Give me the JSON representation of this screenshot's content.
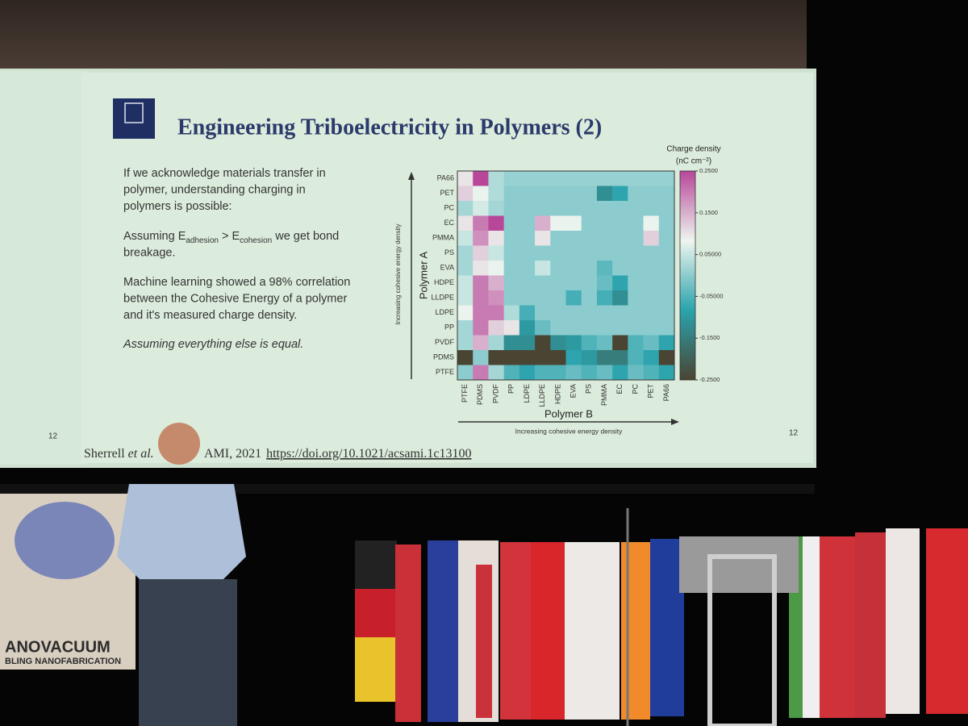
{
  "slide": {
    "title": "Engineering Triboelectricity in Polymers (2)",
    "page_number": "12",
    "paragraphs": [
      {
        "style": "normal",
        "lines": [
          [
            {
              "text": "If we acknowledge materials transfer in"
            }
          ],
          [
            {
              "text": "polymer, understanding charging in"
            }
          ],
          [
            {
              "text": "polymers is possible:"
            }
          ]
        ]
      },
      {
        "style": "normal",
        "lines": [
          [
            {
              "text": "Assuming E"
            },
            {
              "text": "adhesion",
              "sub": true
            },
            {
              "text": " > E"
            },
            {
              "text": "cohesion",
              "sub": true
            },
            {
              "text": " we get bond"
            }
          ],
          [
            {
              "text": "breakage."
            }
          ]
        ]
      },
      {
        "style": "normal",
        "lines": [
          [
            {
              "text": "Machine learning showed a 98% correlation"
            }
          ],
          [
            {
              "text": "between the Cohesive Energy of a polymer"
            }
          ],
          [
            {
              "text": "and it's measured charge density."
            }
          ]
        ]
      },
      {
        "style": "italic",
        "lines": [
          [
            {
              "text": "Assuming everything else is equal."
            }
          ]
        ]
      }
    ],
    "citation": {
      "author": "Sherrell",
      "etal": "et al.",
      "journal": "AMI, 2021",
      "link": "https://doi.org/10.1021/acsami.1c13100"
    }
  },
  "prev_slide": {
    "page_number": "12"
  },
  "banner": {
    "lines": [
      "ANOVACUUM",
      "BLING NANOFABRICATION"
    ]
  },
  "chart_data": {
    "type": "heatmap",
    "y_label": "Polymer A",
    "y_sublabel": "Increasing cohesive energy density",
    "x_label": "Polymer B",
    "x_sublabel": "Increasing cohesive energy density",
    "colorbar_title": [
      "Charge density",
      "(nC cm⁻²)"
    ],
    "rows": [
      "PA66",
      "PET",
      "PC",
      "EC",
      "PMMA",
      "PS",
      "EVA",
      "HDPE",
      "LLDPE",
      "LDPE",
      "PP",
      "PVDF",
      "PDMS",
      "PTFE"
    ],
    "columns": [
      "PTFE",
      "PDMS",
      "PVDF",
      "PP",
      "LDPE",
      "LLDPE",
      "HDPE",
      "EVA",
      "PS",
      "PMMA",
      "EC",
      "PC",
      "PET",
      "PA66"
    ],
    "values": [
      [
        0.1,
        0.25,
        0.03,
        0.01,
        0.01,
        0.01,
        0.01,
        0.01,
        0.01,
        0.01,
        0.01,
        0.01,
        0.01,
        0.01
      ],
      [
        0.12,
        0.08,
        0.03,
        0,
        0,
        0,
        0,
        0,
        0,
        -0.12,
        -0.08,
        0,
        0,
        0
      ],
      [
        0.02,
        0.06,
        0.02,
        0,
        0,
        0,
        0,
        0,
        0,
        0,
        0,
        0,
        0,
        0
      ],
      [
        0.1,
        0.2,
        0.25,
        0,
        0,
        0.15,
        0.08,
        0.08,
        0,
        0,
        0,
        0,
        0.08,
        0
      ],
      [
        0.05,
        0.18,
        0.1,
        0,
        0,
        0.1,
        0,
        0,
        0,
        0,
        0,
        0,
        0.12,
        0
      ],
      [
        0.02,
        0.12,
        0.05,
        0,
        0,
        0,
        0,
        0,
        0,
        0,
        0,
        0,
        0,
        0
      ],
      [
        0.02,
        0.1,
        0.08,
        0,
        0,
        0.05,
        0,
        0,
        0,
        -0.04,
        0,
        0,
        0,
        0
      ],
      [
        0.05,
        0.2,
        0.15,
        0,
        0,
        0,
        0,
        0,
        0,
        -0.03,
        -0.08,
        0,
        0,
        0
      ],
      [
        0.05,
        0.2,
        0.18,
        0,
        0,
        0,
        0,
        -0.06,
        0,
        -0.06,
        -0.12,
        0,
        0,
        0
      ],
      [
        0.08,
        0.2,
        0.2,
        0.03,
        -0.06,
        0,
        0,
        0,
        0,
        0,
        0,
        0,
        0,
        0
      ],
      [
        0.02,
        0.2,
        0.12,
        0.1,
        -0.1,
        -0.03,
        0,
        0,
        0,
        0,
        0,
        0,
        0,
        0
      ],
      [
        0.02,
        0.15,
        0.02,
        -0.12,
        -0.12,
        -0.25,
        -0.12,
        -0.1,
        -0.05,
        -0.03,
        -0.25,
        -0.05,
        -0.03,
        -0.08
      ],
      [
        -0.25,
        0,
        -0.25,
        -0.25,
        -0.25,
        -0.25,
        -0.25,
        -0.08,
        -0.1,
        -0.15,
        -0.15,
        -0.05,
        -0.08,
        -0.25
      ],
      [
        0,
        0.2,
        0.02,
        -0.05,
        -0.08,
        -0.05,
        -0.05,
        -0.03,
        -0.05,
        -0.03,
        -0.08,
        -0.03,
        -0.05,
        -0.08
      ]
    ],
    "clim": [
      -0.25,
      0.25
    ],
    "cticks": [
      {
        "value": 0.25,
        "label": "0.2500"
      },
      {
        "value": 0.15,
        "label": "0.1500"
      },
      {
        "value": 0.05,
        "label": "0.05000"
      },
      {
        "value": -0.05,
        "label": "-0.05000"
      },
      {
        "value": -0.15,
        "label": "-0.1500"
      },
      {
        "value": -0.25,
        "label": "-0.2500"
      }
    ],
    "colorscale": [
      "#4a4432",
      "#2aa3ad",
      "#eef5ee",
      "#b8479a"
    ]
  }
}
